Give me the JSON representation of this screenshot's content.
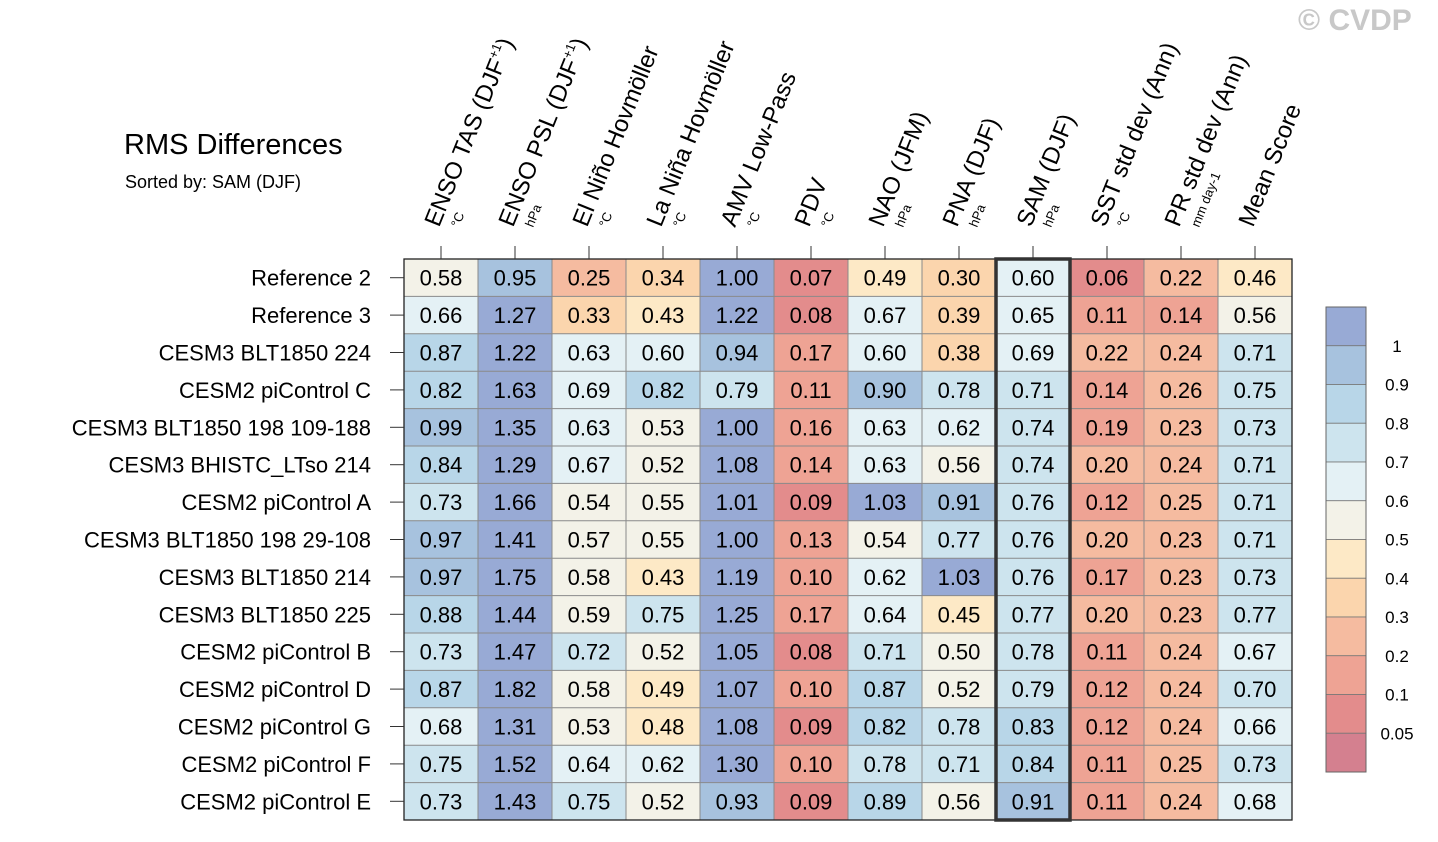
{
  "header": {
    "title": "RMS Differences",
    "subtitle": "Sorted by: SAM (DJF)",
    "copyright": "© CVDP"
  },
  "chart_data": {
    "type": "heatmap",
    "title": "RMS Differences",
    "sorted_by": "SAM (DJF)",
    "highlighted_column": "SAM (DJF)",
    "columns": [
      {
        "label": "ENSO TAS (DJF",
        "sup": "+1",
        "close": ")",
        "unit": "°C"
      },
      {
        "label": "ENSO PSL (DJF",
        "sup": "+1",
        "close": ")",
        "unit": "hPa"
      },
      {
        "label": "El Niño Hovmöller",
        "sup": "",
        "close": "",
        "unit": "°C"
      },
      {
        "label": "La Niña Hovmöller",
        "sup": "",
        "close": "",
        "unit": "°C"
      },
      {
        "label": "AMV Low-Pass",
        "sup": "",
        "close": "",
        "unit": "°C"
      },
      {
        "label": "PDV",
        "sup": "",
        "close": "",
        "unit": "°C"
      },
      {
        "label": "NAO (JFM)",
        "sup": "",
        "close": "",
        "unit": "hPa"
      },
      {
        "label": "PNA (DJF)",
        "sup": "",
        "close": "",
        "unit": "hPa"
      },
      {
        "label": "SAM (DJF)",
        "sup": "",
        "close": "",
        "unit": "hPa"
      },
      {
        "label": "SST std dev (Ann)",
        "sup": "",
        "close": "",
        "unit": "°C"
      },
      {
        "label": "PR std dev (Ann)",
        "sup": "",
        "close": "",
        "unit": "mm day-1"
      },
      {
        "label": "Mean Score",
        "sup": "",
        "close": "",
        "unit": ""
      }
    ],
    "rows": [
      "Reference 2",
      "Reference 3",
      "CESM3 BLT1850 224",
      "CESM2 piControl C",
      "CESM3 BLT1850 198 109-188",
      "CESM3 BHISTC_LTso 214",
      "CESM2 piControl A",
      "CESM3 BLT1850 198 29-108",
      "CESM3 BLT1850 214",
      "CESM3 BLT1850 225",
      "CESM2 piControl B",
      "CESM2 piControl D",
      "CESM2 piControl G",
      "CESM2 piControl F",
      "CESM2 piControl E"
    ],
    "values": [
      [
        "0.58",
        "0.95",
        "0.25",
        "0.34",
        "1.00",
        "0.07",
        "0.49",
        "0.30",
        "0.60",
        "0.06",
        "0.22",
        "0.46"
      ],
      [
        "0.66",
        "1.27",
        "0.33",
        "0.43",
        "1.22",
        "0.08",
        "0.67",
        "0.39",
        "0.65",
        "0.11",
        "0.14",
        "0.56"
      ],
      [
        "0.87",
        "1.22",
        "0.63",
        "0.60",
        "0.94",
        "0.17",
        "0.60",
        "0.38",
        "0.69",
        "0.22",
        "0.24",
        "0.71"
      ],
      [
        "0.82",
        "1.63",
        "0.69",
        "0.82",
        "0.79",
        "0.11",
        "0.90",
        "0.78",
        "0.71",
        "0.14",
        "0.26",
        "0.75"
      ],
      [
        "0.99",
        "1.35",
        "0.63",
        "0.53",
        "1.00",
        "0.16",
        "0.63",
        "0.62",
        "0.74",
        "0.19",
        "0.23",
        "0.73"
      ],
      [
        "0.84",
        "1.29",
        "0.67",
        "0.52",
        "1.08",
        "0.14",
        "0.63",
        "0.56",
        "0.74",
        "0.20",
        "0.24",
        "0.71"
      ],
      [
        "0.73",
        "1.66",
        "0.54",
        "0.55",
        "1.01",
        "0.09",
        "1.03",
        "0.91",
        "0.76",
        "0.12",
        "0.25",
        "0.71"
      ],
      [
        "0.97",
        "1.41",
        "0.57",
        "0.55",
        "1.00",
        "0.13",
        "0.54",
        "0.77",
        "0.76",
        "0.20",
        "0.23",
        "0.71"
      ],
      [
        "0.97",
        "1.75",
        "0.58",
        "0.43",
        "1.19",
        "0.10",
        "0.62",
        "1.03",
        "0.76",
        "0.17",
        "0.23",
        "0.73"
      ],
      [
        "0.88",
        "1.44",
        "0.59",
        "0.75",
        "1.25",
        "0.17",
        "0.64",
        "0.45",
        "0.77",
        "0.20",
        "0.23",
        "0.77"
      ],
      [
        "0.73",
        "1.47",
        "0.72",
        "0.52",
        "1.05",
        "0.08",
        "0.71",
        "0.50",
        "0.78",
        "0.11",
        "0.24",
        "0.67"
      ],
      [
        "0.87",
        "1.82",
        "0.58",
        "0.49",
        "1.07",
        "0.10",
        "0.87",
        "0.52",
        "0.79",
        "0.12",
        "0.24",
        "0.70"
      ],
      [
        "0.68",
        "1.31",
        "0.53",
        "0.48",
        "1.08",
        "0.09",
        "0.82",
        "0.78",
        "0.83",
        "0.12",
        "0.24",
        "0.66"
      ],
      [
        "0.75",
        "1.52",
        "0.64",
        "0.62",
        "1.30",
        "0.10",
        "0.78",
        "0.71",
        "0.84",
        "0.11",
        "0.25",
        "0.73"
      ],
      [
        "0.73",
        "1.43",
        "0.75",
        "0.52",
        "0.93",
        "0.09",
        "0.89",
        "0.56",
        "0.91",
        "0.11",
        "0.24",
        "0.68"
      ]
    ],
    "colorbar": {
      "levels": [
        0.05,
        0.1,
        0.2,
        0.3,
        0.4,
        0.5,
        0.6,
        0.7,
        0.8,
        0.9,
        1
      ],
      "tick_labels": [
        "1",
        "0.9",
        "0.8",
        "0.7",
        "0.6",
        "0.5",
        "0.4",
        "0.3",
        "0.2",
        "0.1",
        "0.05"
      ],
      "colors": [
        "#d4808f",
        "#e38c8c",
        "#eea394",
        "#f5bba0",
        "#fbd5ad",
        "#fde9c6",
        "#f3f2e8",
        "#e4f1f5",
        "#cde4ee",
        "#b8d6e8",
        "#a7c2de",
        "#98aad5"
      ]
    },
    "highlight_color": "#333333"
  }
}
